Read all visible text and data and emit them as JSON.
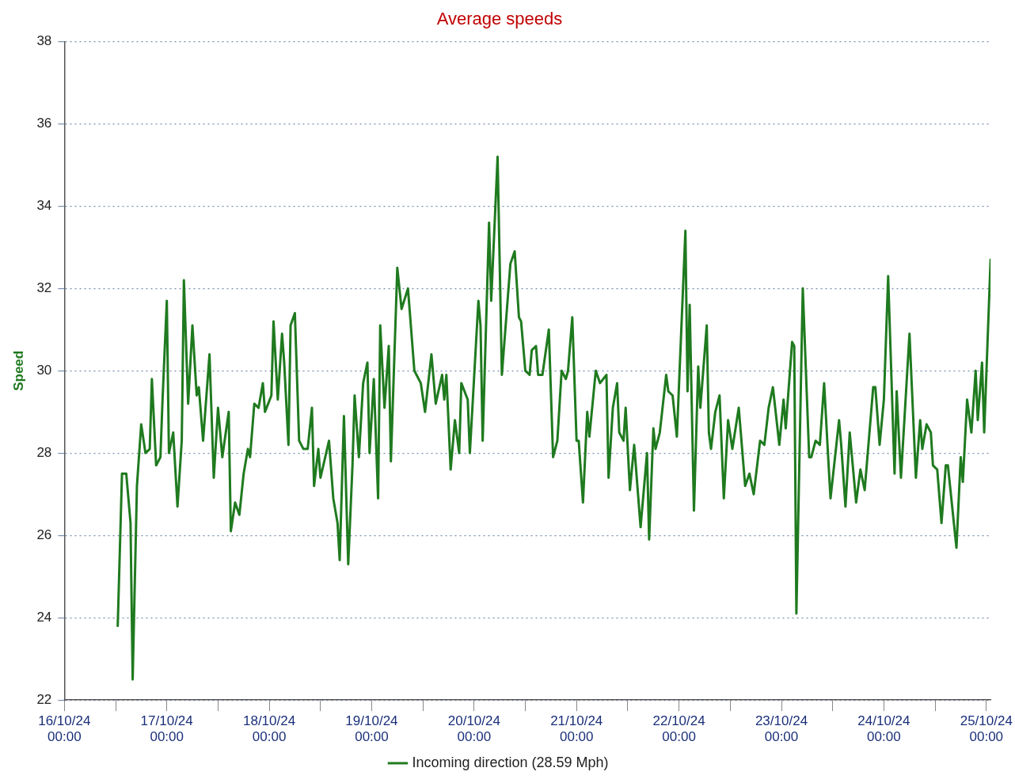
{
  "chart_data": {
    "type": "line",
    "title": "Average speeds",
    "ylabel": "Speed",
    "xlim": [
      "--10-16T00:00",
      "--10-25T01:00"
    ],
    "xticks": [
      {
        "value": "--10-16T00:00",
        "label": "16/10/24 00:00"
      },
      {
        "value": "--10-16T12:00",
        "label": null
      },
      {
        "value": "--10-17T00:00",
        "label": "17/10/24 00:00"
      },
      {
        "value": "--10-17T12:00",
        "label": null
      },
      {
        "value": "--10-18T00:00",
        "label": "18/10/24 00:00"
      },
      {
        "value": "--10-18T12:00",
        "label": null
      },
      {
        "value": "--10-19T00:00",
        "label": "19/10/24 00:00"
      },
      {
        "value": "--10-19T12:00",
        "label": null
      },
      {
        "value": "--10-20T00:00",
        "label": "20/10/24 00:00"
      },
      {
        "value": "--10-20T12:00",
        "label": null
      },
      {
        "value": "--10-21T00:00",
        "label": "21/10/24 00:00"
      },
      {
        "value": "--10-21T12:00",
        "label": null
      },
      {
        "value": "--10-22T00:00",
        "label": "22/10/24 00:00"
      },
      {
        "value": "--10-22T12:00",
        "label": null
      },
      {
        "value": "--10-23T00:00",
        "label": "23/10/24 00:00"
      },
      {
        "value": "--10-23T12:00",
        "label": null
      },
      {
        "value": "--10-24T00:00",
        "label": "24/10/24 00:00"
      },
      {
        "value": "--10-24T12:00",
        "label": null
      },
      {
        "value": "--10-25T00:00",
        "label": "25/10/24 00:00"
      }
    ],
    "ylim": [
      22,
      38
    ],
    "yticks": [
      22,
      24,
      26,
      28,
      30,
      32,
      34,
      36,
      38
    ],
    "grid": "y",
    "legend": "bottom",
    "marker": "none",
    "line_style": "solid",
    "x": [
      "--10-16T12:30",
      "--10-16T13:30",
      "--10-16T14:30",
      "--10-16T15:30",
      "--10-16T16:00",
      "--10-16T17:00",
      "--10-16T18:00",
      "--10-16T19:00",
      "--10-16T20:00",
      "--10-16T20:30",
      "--10-16T21:30",
      "--10-16T22:30",
      "--10-16T23:00",
      "--10-17T00:00",
      "--10-17T00:30",
      "--10-17T01:30",
      "--10-17T02:30",
      "--10-17T03:30",
      "--10-17T04:00",
      "--10-17T05:00",
      "--10-17T06:00",
      "--10-17T07:00",
      "--10-17T07:30",
      "--10-17T08:30",
      "--10-17T10:00",
      "--10-17T11:00",
      "--10-17T12:00",
      "--10-17T13:00",
      "--10-17T14:30",
      "--10-17T15:00",
      "--10-17T16:00",
      "--10-17T17:00",
      "--10-17T18:00",
      "--10-17T19:00",
      "--10-17T19:30",
      "--10-17T20:30",
      "--10-17T21:30",
      "--10-17T22:30",
      "--10-17T23:00",
      "--10-18T00:30",
      "--10-18T01:00",
      "--10-18T02:00",
      "--10-18T03:00",
      "--10-18T03:30",
      "--10-18T04:30",
      "--10-18T05:00",
      "--10-18T06:00",
      "--10-18T07:00",
      "--10-18T08:00",
      "--10-18T09:00",
      "--10-18T10:00",
      "--10-18T10:30",
      "--10-18T11:30",
      "--10-18T12:00",
      "--10-18T14:00",
      "--10-18T15:00",
      "--10-18T16:00",
      "--10-18T16:30",
      "--10-18T17:30",
      "--10-18T18:30",
      "--10-18T19:30",
      "--10-18T20:00",
      "--10-18T21:00",
      "--10-18T22:00",
      "--10-18T23:00",
      "--10-18T23:30",
      "--10-19T00:30",
      "--10-19T01:30",
      "--10-19T02:00",
      "--10-19T03:00",
      "--10-19T04:00",
      "--10-19T04:30",
      "--10-19T06:00",
      "--10-19T07:00",
      "--10-19T08:30",
      "--10-19T10:00",
      "--10-19T11:30",
      "--10-19T12:30",
      "--10-19T14:00",
      "--10-19T15:00",
      "--10-19T16:30",
      "--10-19T17:00",
      "--10-19T17:30",
      "--10-19T18:30",
      "--10-19T19:30",
      "--10-19T20:30",
      "--10-19T21:00",
      "--10-19T22:30",
      "--10-19T23:00",
      "--10-20T01:00",
      "--10-20T01:30",
      "--10-20T02:00",
      "--10-20T03:30",
      "--10-20T04:00",
      "--10-20T05:30",
      "--10-20T06:30",
      "--10-20T08:30",
      "--10-20T09:30",
      "--10-20T10:30",
      "--10-20T11:00",
      "--10-20T12:00",
      "--10-20T13:00",
      "--10-20T13:30",
      "--10-20T14:30",
      "--10-20T15:00",
      "--10-20T16:00",
      "--10-20T17:30",
      "--10-20T18:30",
      "--10-20T19:30",
      "--10-20T20:30",
      "--10-20T21:30",
      "--10-20T22:00",
      "--10-20T23:00",
      "--10-21T00:00",
      "--10-21T00:30",
      "--10-21T01:30",
      "--10-21T02:30",
      "--10-21T03:00",
      "--10-21T04:30",
      "--10-21T05:30",
      "--10-21T07:00",
      "--10-21T07:30",
      "--10-21T08:30",
      "--10-21T09:30",
      "--10-21T10:00",
      "--10-21T11:00",
      "--10-21T11:30",
      "--10-21T12:30",
      "--10-21T13:30",
      "--10-21T15:00",
      "--10-21T16:30",
      "--10-21T17:00",
      "--10-21T18:00",
      "--10-21T18:30",
      "--10-21T19:30",
      "--10-21T21:00",
      "--10-21T21:30",
      "--10-21T22:30",
      "--10-21T23:30",
      "--10-22T01:30",
      "--10-22T02:00",
      "--10-22T02:30",
      "--10-22T03:30",
      "--10-22T04:30",
      "--10-22T05:00",
      "--10-22T06:30",
      "--10-22T07:00",
      "--10-22T07:30",
      "--10-22T08:30",
      "--10-22T09:30",
      "--10-22T10:30",
      "--10-22T11:30",
      "--10-22T12:30",
      "--10-22T14:00",
      "--10-22T15:30",
      "--10-22T16:30",
      "--10-22T17:30",
      "--10-22T19:00",
      "--10-22T20:00",
      "--10-22T21:00",
      "--10-22T22:00",
      "--10-22T23:30",
      "--10-23T00:30",
      "--10-23T01:00",
      "--10-23T02:30",
      "--10-23T03:00",
      "--10-23T03:30",
      "--10-23T05:00",
      "--10-23T06:30",
      "--10-23T07:00",
      "--10-23T08:00",
      "--10-23T09:00",
      "--10-23T10:00",
      "--10-23T11:00",
      "--10-23T11:30",
      "--10-23T13:30",
      "--10-23T14:00",
      "--10-23T15:00",
      "--10-23T16:00",
      "--10-23T17:30",
      "--10-23T18:30",
      "--10-23T19:30",
      "--10-23T21:30",
      "--10-23T22:00",
      "--10-23T23:00",
      "--10-24T00:00",
      "--10-24T01:00",
      "--10-24T02:30",
      "--10-24T03:00",
      "--10-24T04:00",
      "--10-24T06:00",
      "--10-24T07:30",
      "--10-24T08:30",
      "--10-24T09:00",
      "--10-24T10:00",
      "--10-24T11:00",
      "--10-24T11:30",
      "--10-24T12:30",
      "--10-24T13:30",
      "--10-24T14:30",
      "--10-24T15:00",
      "--10-24T17:00",
      "--10-24T18:00",
      "--10-24T18:30",
      "--10-24T19:30",
      "--10-24T20:30",
      "--10-24T21:30",
      "--10-24T22:00",
      "--10-24T23:00",
      "--10-24T23:30",
      "--10-25T01:00"
    ],
    "series": [
      {
        "name": "Incoming direction (28.59 Mph)",
        "color": "#1f7a1f",
        "values": [
          23.8,
          27.5,
          27.5,
          26.3,
          22.5,
          27.2,
          28.7,
          28.0,
          28.1,
          29.8,
          27.7,
          27.9,
          29.3,
          31.7,
          28.0,
          28.5,
          26.7,
          28.3,
          32.2,
          29.2,
          31.1,
          29.4,
          29.6,
          28.3,
          30.4,
          27.4,
          29.1,
          27.9,
          29.0,
          26.1,
          26.8,
          26.5,
          27.5,
          28.1,
          27.9,
          29.2,
          29.1,
          29.7,
          29.0,
          29.4,
          31.2,
          29.3,
          30.9,
          30.2,
          28.2,
          31.1,
          31.4,
          28.3,
          28.1,
          28.1,
          29.1,
          27.2,
          28.1,
          27.4,
          28.3,
          26.9,
          26.3,
          25.4,
          28.9,
          25.3,
          27.7,
          29.4,
          27.9,
          29.7,
          30.2,
          28.0,
          29.8,
          26.9,
          31.1,
          29.1,
          30.6,
          27.8,
          32.5,
          31.5,
          32.0,
          30.0,
          29.7,
          29.0,
          30.4,
          29.2,
          29.9,
          29.3,
          29.9,
          27.6,
          28.8,
          28.0,
          29.7,
          29.3,
          28.0,
          31.7,
          31.1,
          28.3,
          33.6,
          31.7,
          35.2,
          29.9,
          32.6,
          32.9,
          31.3,
          31.2,
          30.0,
          29.9,
          30.5,
          30.6,
          29.9,
          29.9,
          31.0,
          27.9,
          28.3,
          30.0,
          29.8,
          30.0,
          31.3,
          28.3,
          28.3,
          26.8,
          29.0,
          28.4,
          30.0,
          29.7,
          29.9,
          27.4,
          29.1,
          29.7,
          28.5,
          28.3,
          29.1,
          27.1,
          28.2,
          26.2,
          28.0,
          25.9,
          28.6,
          28.1,
          28.5,
          29.9,
          29.5,
          29.4,
          28.4,
          33.4,
          29.5,
          31.6,
          26.6,
          30.1,
          29.1,
          31.1,
          28.5,
          28.1,
          29.0,
          29.4,
          26.9,
          28.8,
          28.1,
          29.1,
          27.2,
          27.5,
          27.0,
          28.3,
          28.2,
          29.1,
          29.6,
          28.2,
          29.3,
          28.6,
          30.7,
          30.6,
          24.1,
          32.0,
          27.9,
          27.9,
          28.3,
          28.2,
          29.7,
          27.8,
          26.9,
          28.8,
          28.2,
          26.7,
          28.5,
          26.8,
          27.6,
          27.1,
          29.6,
          29.6,
          28.2,
          29.3,
          32.3,
          27.5,
          29.5,
          27.4,
          30.9,
          27.4,
          28.8,
          28.1,
          28.7,
          28.5,
          27.7,
          27.6,
          26.3,
          27.7,
          27.7,
          25.7,
          27.9,
          27.3,
          29.3,
          28.5,
          30.0,
          28.8,
          30.2,
          28.5,
          32.7
        ]
      }
    ]
  }
}
